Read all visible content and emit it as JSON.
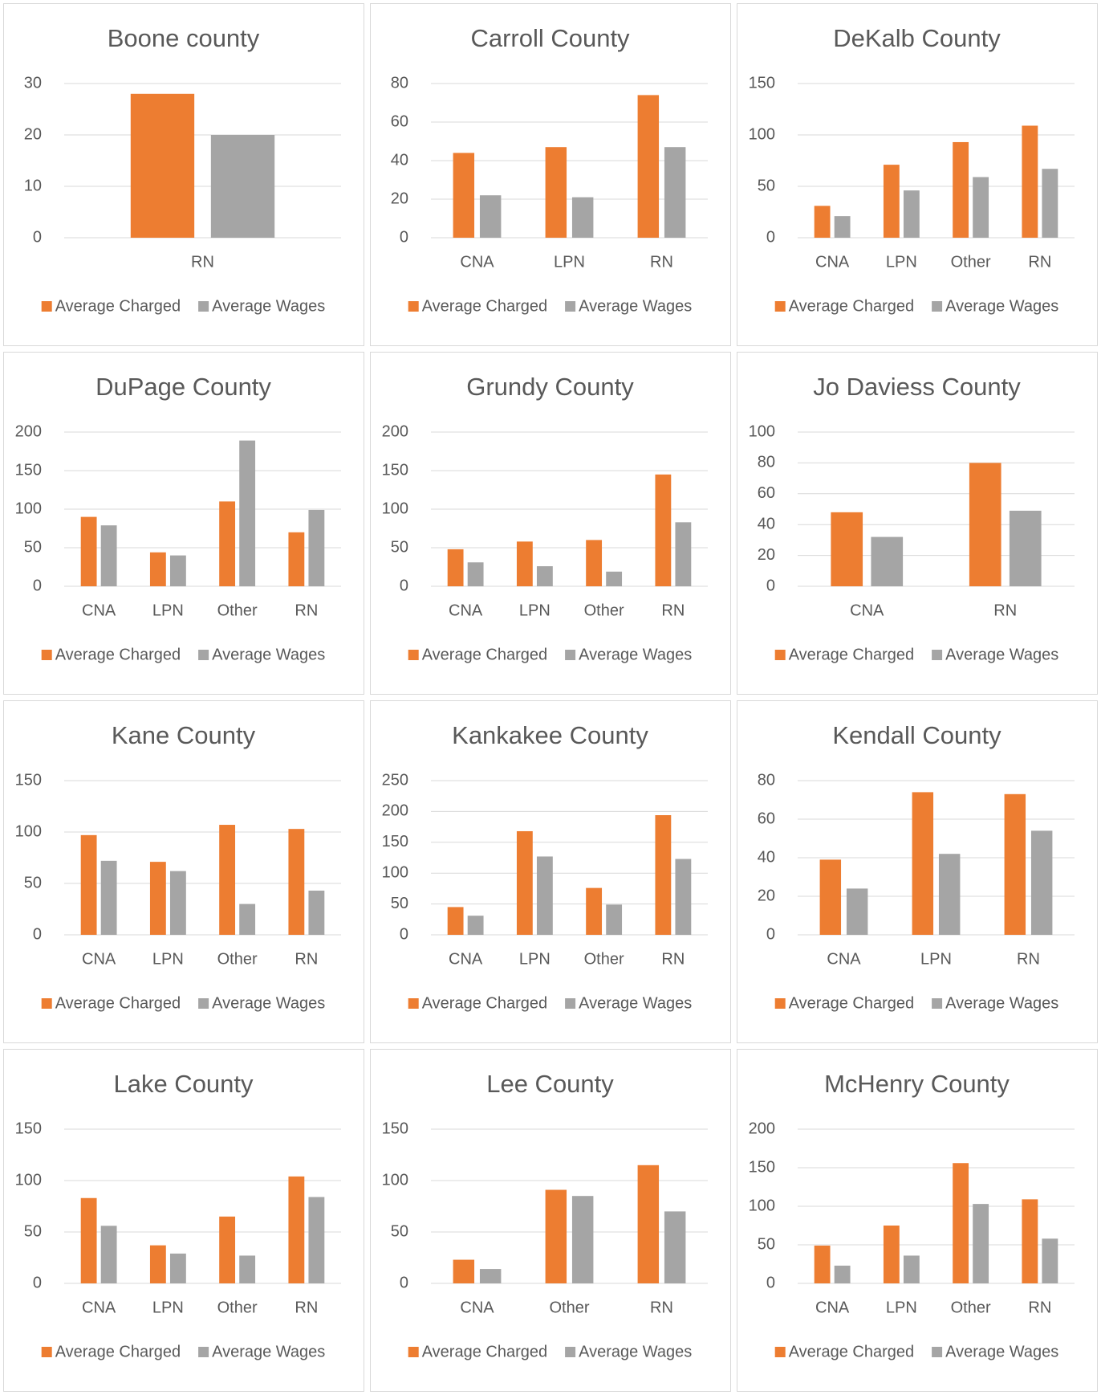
{
  "chart_data": [
    {
      "type": "bar",
      "title": "Boone county",
      "categories": [
        "RN"
      ],
      "series": [
        {
          "name": "Average Charged",
          "color": "#ed7d31",
          "values": [
            28
          ]
        },
        {
          "name": "Average Wages",
          "color": "#a5a5a5",
          "values": [
            20
          ]
        }
      ],
      "ylim": [
        0,
        30
      ],
      "yticks": [
        0,
        10,
        20,
        30
      ],
      "grid": true
    },
    {
      "type": "bar",
      "title": "Carroll County",
      "categories": [
        "CNA",
        "LPN",
        "RN"
      ],
      "series": [
        {
          "name": "Average Charged",
          "color": "#ed7d31",
          "values": [
            44,
            47,
            74
          ]
        },
        {
          "name": "Average Wages",
          "color": "#a5a5a5",
          "values": [
            22,
            21,
            47
          ]
        }
      ],
      "ylim": [
        0,
        80
      ],
      "yticks": [
        0,
        20,
        40,
        60,
        80
      ],
      "grid": true
    },
    {
      "type": "bar",
      "title": "DeKalb County",
      "categories": [
        "CNA",
        "LPN",
        "Other",
        "RN"
      ],
      "series": [
        {
          "name": "Average Charged",
          "color": "#ed7d31",
          "values": [
            31,
            71,
            93,
            109
          ]
        },
        {
          "name": "Average Wages",
          "color": "#a5a5a5",
          "values": [
            21,
            46,
            59,
            67
          ]
        }
      ],
      "ylim": [
        0,
        150
      ],
      "yticks": [
        0,
        50,
        100,
        150
      ],
      "grid": true
    },
    {
      "type": "bar",
      "title": "DuPage County",
      "categories": [
        "CNA",
        "LPN",
        "Other",
        "RN"
      ],
      "series": [
        {
          "name": "Average Charged",
          "color": "#ed7d31",
          "values": [
            90,
            44,
            110,
            70
          ]
        },
        {
          "name": "Average Wages",
          "color": "#a5a5a5",
          "values": [
            79,
            40,
            189,
            99
          ]
        }
      ],
      "ylim": [
        0,
        200
      ],
      "yticks": [
        0,
        50,
        100,
        150,
        200
      ],
      "grid": true
    },
    {
      "type": "bar",
      "title": "Grundy County",
      "categories": [
        "CNA",
        "LPN",
        "Other",
        "RN"
      ],
      "series": [
        {
          "name": "Average Charged",
          "color": "#ed7d31",
          "values": [
            48,
            58,
            60,
            145
          ]
        },
        {
          "name": "Average Wages",
          "color": "#a5a5a5",
          "values": [
            31,
            26,
            19,
            83
          ]
        }
      ],
      "ylim": [
        0,
        200
      ],
      "yticks": [
        0,
        50,
        100,
        150,
        200
      ],
      "grid": true
    },
    {
      "type": "bar",
      "title": "Jo Daviess County",
      "categories": [
        "CNA",
        "RN"
      ],
      "series": [
        {
          "name": "Average Charged",
          "color": "#ed7d31",
          "values": [
            48,
            80
          ]
        },
        {
          "name": "Average Wages",
          "color": "#a5a5a5",
          "values": [
            32,
            49
          ]
        }
      ],
      "ylim": [
        0,
        100
      ],
      "yticks": [
        0,
        20,
        40,
        60,
        80,
        100
      ],
      "grid": true
    },
    {
      "type": "bar",
      "title": "Kane County",
      "categories": [
        "CNA",
        "LPN",
        "Other",
        "RN"
      ],
      "series": [
        {
          "name": "Average Charged",
          "color": "#ed7d31",
          "values": [
            97,
            71,
            107,
            103
          ]
        },
        {
          "name": "Average Wages",
          "color": "#a5a5a5",
          "values": [
            72,
            62,
            30,
            43
          ]
        }
      ],
      "ylim": [
        0,
        150
      ],
      "yticks": [
        0,
        50,
        100,
        150
      ],
      "grid": true
    },
    {
      "type": "bar",
      "title": "Kankakee County",
      "categories": [
        "CNA",
        "LPN",
        "Other",
        "RN"
      ],
      "series": [
        {
          "name": "Average Charged",
          "color": "#ed7d31",
          "values": [
            45,
            168,
            76,
            194
          ]
        },
        {
          "name": "Average Wages",
          "color": "#a5a5a5",
          "values": [
            31,
            127,
            49,
            123
          ]
        }
      ],
      "ylim": [
        0,
        250
      ],
      "yticks": [
        0,
        50,
        100,
        150,
        200,
        250
      ],
      "grid": true
    },
    {
      "type": "bar",
      "title": "Kendall County",
      "categories": [
        "CNA",
        "LPN",
        "RN"
      ],
      "series": [
        {
          "name": "Average Charged",
          "color": "#ed7d31",
          "values": [
            39,
            74,
            73
          ]
        },
        {
          "name": "Average Wages",
          "color": "#a5a5a5",
          "values": [
            24,
            42,
            54
          ]
        }
      ],
      "ylim": [
        0,
        80
      ],
      "yticks": [
        0,
        20,
        40,
        60,
        80
      ],
      "grid": true
    },
    {
      "type": "bar",
      "title": "Lake County",
      "categories": [
        "CNA",
        "LPN",
        "Other",
        "RN"
      ],
      "series": [
        {
          "name": "Average Charged",
          "color": "#ed7d31",
          "values": [
            83,
            37,
            65,
            104
          ]
        },
        {
          "name": "Average Wages",
          "color": "#a5a5a5",
          "values": [
            56,
            29,
            27,
            84
          ]
        }
      ],
      "ylim": [
        0,
        150
      ],
      "yticks": [
        0,
        50,
        100,
        150
      ],
      "grid": true
    },
    {
      "type": "bar",
      "title": "Lee County",
      "categories": [
        "CNA",
        "Other",
        "RN"
      ],
      "series": [
        {
          "name": "Average Charged",
          "color": "#ed7d31",
          "values": [
            23,
            91,
            115
          ]
        },
        {
          "name": "Average Wages",
          "color": "#a5a5a5",
          "values": [
            14,
            85,
            70
          ]
        }
      ],
      "ylim": [
        0,
        150
      ],
      "yticks": [
        0,
        50,
        100,
        150
      ],
      "grid": true
    },
    {
      "type": "bar",
      "title": "McHenry County",
      "categories": [
        "CNA",
        "LPN",
        "Other",
        "RN"
      ],
      "series": [
        {
          "name": "Average Charged",
          "color": "#ed7d31",
          "values": [
            49,
            75,
            156,
            109
          ]
        },
        {
          "name": "Average Wages",
          "color": "#a5a5a5",
          "values": [
            23,
            36,
            103,
            58
          ]
        }
      ],
      "ylim": [
        0,
        200
      ],
      "yticks": [
        0,
        50,
        100,
        150,
        200
      ],
      "grid": true
    }
  ]
}
